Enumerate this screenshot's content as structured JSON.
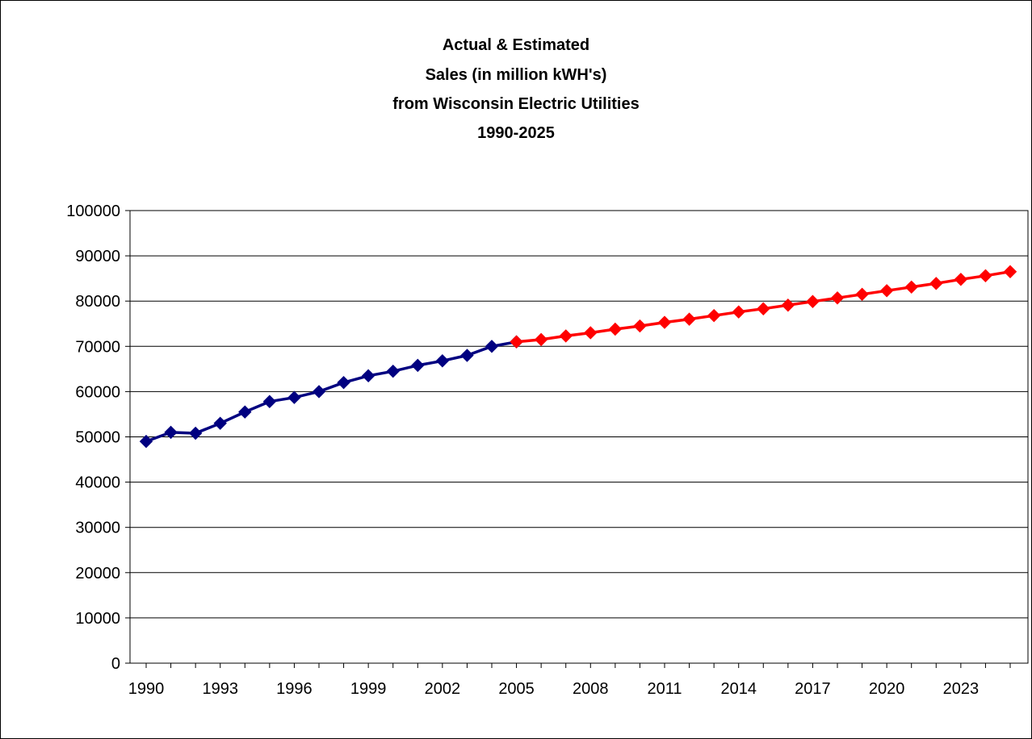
{
  "chart_data": {
    "type": "line",
    "title_lines": [
      "Actual & Estimated",
      "Sales (in million kWH's)",
      "from Wisconsin Electric Utilities",
      "1990-2025"
    ],
    "xlabel": "",
    "ylabel": "",
    "ylim": [
      0,
      100000
    ],
    "ytick_step": 10000,
    "x_tick_labels": [
      "1990",
      "1993",
      "1996",
      "1999",
      "2002",
      "2005",
      "2008",
      "2011",
      "2014",
      "2017",
      "2020",
      "2023"
    ],
    "grid": "horizontal",
    "legend": "none",
    "series": [
      {
        "color": "#000080",
        "x": [
          1990,
          1991,
          1992,
          1993,
          1994,
          1995,
          1996,
          1997,
          1998,
          1999,
          2000,
          2001,
          2002,
          2003,
          2004,
          2005
        ],
        "values": [
          49000,
          51000,
          50800,
          53000,
          55500,
          57800,
          58700,
          60000,
          62000,
          63500,
          64500,
          65800,
          66800,
          68000,
          70000,
          71000
        ]
      },
      {
        "color": "#ff0000",
        "x": [
          2005,
          2006,
          2007,
          2008,
          2009,
          2010,
          2011,
          2012,
          2013,
          2014,
          2015,
          2016,
          2017,
          2018,
          2019,
          2020,
          2021,
          2022,
          2023,
          2024,
          2025
        ],
        "values": [
          71000,
          71500,
          72300,
          73000,
          73800,
          74500,
          75300,
          76000,
          76800,
          77600,
          78300,
          79100,
          79900,
          80700,
          81500,
          82300,
          83100,
          83900,
          84800,
          85600,
          86500
        ]
      }
    ]
  }
}
